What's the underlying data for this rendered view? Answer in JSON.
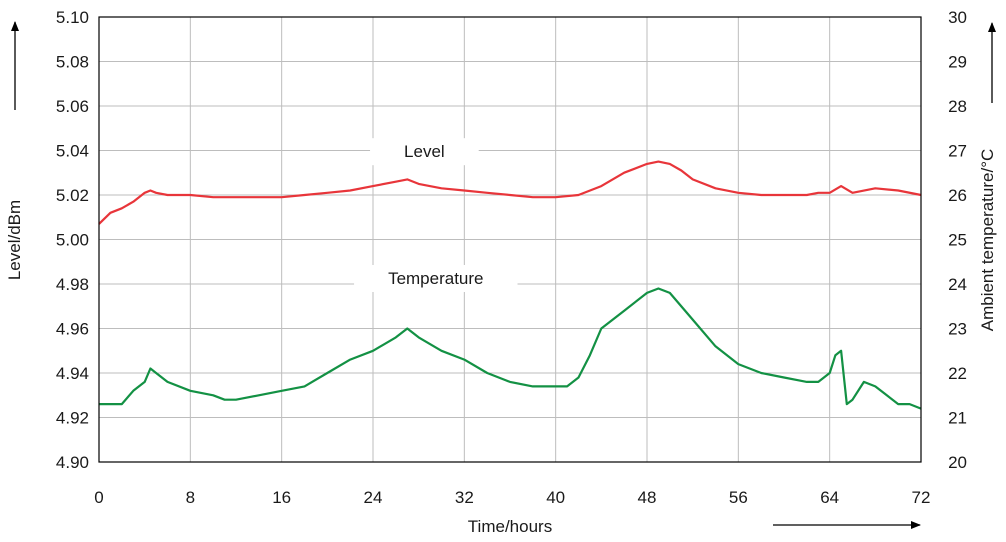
{
  "chart_data": {
    "type": "line",
    "xlabel": "Time/hours",
    "ylabel": "Level/dBm",
    "y2label": "Ambient temperature/°C",
    "xlim": [
      0,
      72
    ],
    "ylim": [
      4.9,
      5.1
    ],
    "y2lim": [
      20,
      30
    ],
    "xticks": [
      "0",
      "8",
      "16",
      "24",
      "32",
      "40",
      "48",
      "56",
      "64",
      "72"
    ],
    "yticks": [
      "4.90",
      "4.92",
      "4.94",
      "4.96",
      "4.98",
      "5.00",
      "5.02",
      "5.04",
      "5.06",
      "5.08",
      "5.10"
    ],
    "y2ticks": [
      "20",
      "21",
      "22",
      "23",
      "24",
      "25",
      "26",
      "27",
      "28",
      "29",
      "30"
    ],
    "grid": true,
    "series": [
      {
        "name": "Level",
        "axis": "left",
        "color": "#e8353a",
        "x": [
          0,
          1,
          2,
          3,
          4,
          4.5,
          5,
          6,
          8,
          10,
          12,
          14,
          16,
          18,
          20,
          22,
          24,
          26,
          27,
          28,
          30,
          32,
          34,
          36,
          38,
          40,
          42,
          44,
          46,
          48,
          49,
          50,
          51,
          52,
          54,
          56,
          58,
          60,
          62,
          63,
          64,
          65,
          66,
          68,
          70,
          72
        ],
        "values": [
          5.007,
          5.012,
          5.014,
          5.017,
          5.021,
          5.022,
          5.021,
          5.02,
          5.02,
          5.019,
          5.019,
          5.019,
          5.019,
          5.02,
          5.021,
          5.022,
          5.024,
          5.026,
          5.027,
          5.025,
          5.023,
          5.022,
          5.021,
          5.02,
          5.019,
          5.019,
          5.02,
          5.024,
          5.03,
          5.034,
          5.035,
          5.034,
          5.031,
          5.027,
          5.023,
          5.021,
          5.02,
          5.02,
          5.02,
          5.021,
          5.021,
          5.024,
          5.021,
          5.023,
          5.022,
          5.02
        ]
      },
      {
        "name": "Temperature",
        "axis": "right",
        "color": "#139144",
        "x": [
          0,
          1,
          2,
          3,
          4,
          4.5,
          5,
          6,
          8,
          10,
          11,
          12,
          14,
          16,
          18,
          20,
          22,
          24,
          26,
          27,
          28,
          30,
          32,
          34,
          36,
          38,
          40,
          41,
          42,
          43,
          44,
          46,
          48,
          49,
          50,
          52,
          54,
          56,
          58,
          60,
          62,
          63,
          64,
          64.5,
          65,
          65.5,
          66,
          67,
          68,
          69,
          70,
          71,
          72
        ],
        "values": [
          21.3,
          21.3,
          21.3,
          21.6,
          21.8,
          22.1,
          22.0,
          21.8,
          21.6,
          21.5,
          21.4,
          21.4,
          21.5,
          21.6,
          21.7,
          22.0,
          22.3,
          22.5,
          22.8,
          23.0,
          22.8,
          22.5,
          22.3,
          22.0,
          21.8,
          21.7,
          21.7,
          21.7,
          21.9,
          22.4,
          23.0,
          23.4,
          23.8,
          23.9,
          23.8,
          23.2,
          22.6,
          22.2,
          22.0,
          21.9,
          21.8,
          21.8,
          22.0,
          22.4,
          22.5,
          21.3,
          21.4,
          21.8,
          21.7,
          21.5,
          21.3,
          21.3,
          21.2
        ]
      }
    ],
    "annotations": [
      {
        "text": "Level",
        "x": 28.5,
        "y": 5.037,
        "axis": "left"
      },
      {
        "text": "Temperature",
        "x": 29.5,
        "y": 24.0,
        "axis": "right"
      }
    ]
  }
}
